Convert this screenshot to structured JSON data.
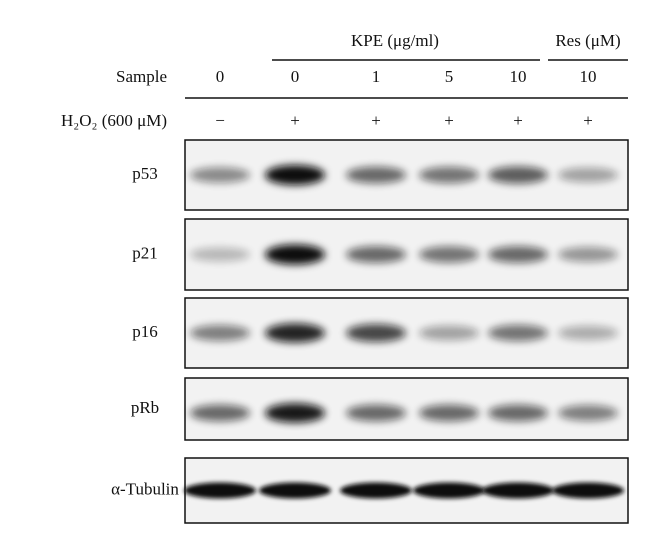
{
  "header": {
    "kpe_label": "KPE (μg/ml)",
    "res_label": "Res (μM)",
    "sample_label": "Sample",
    "h2o2_label": "H₂O₂ (600 μM)"
  },
  "lanes": {
    "samples": [
      "0",
      "0",
      "1",
      "5",
      "10",
      "10"
    ],
    "h2o2": [
      "−",
      "+",
      "+",
      "+",
      "+",
      "+"
    ]
  },
  "blots": [
    {
      "label": "p53"
    },
    {
      "label": "p21"
    },
    {
      "label": "p16"
    },
    {
      "label": "pRb"
    },
    {
      "label": "α-Tubulin"
    }
  ]
}
